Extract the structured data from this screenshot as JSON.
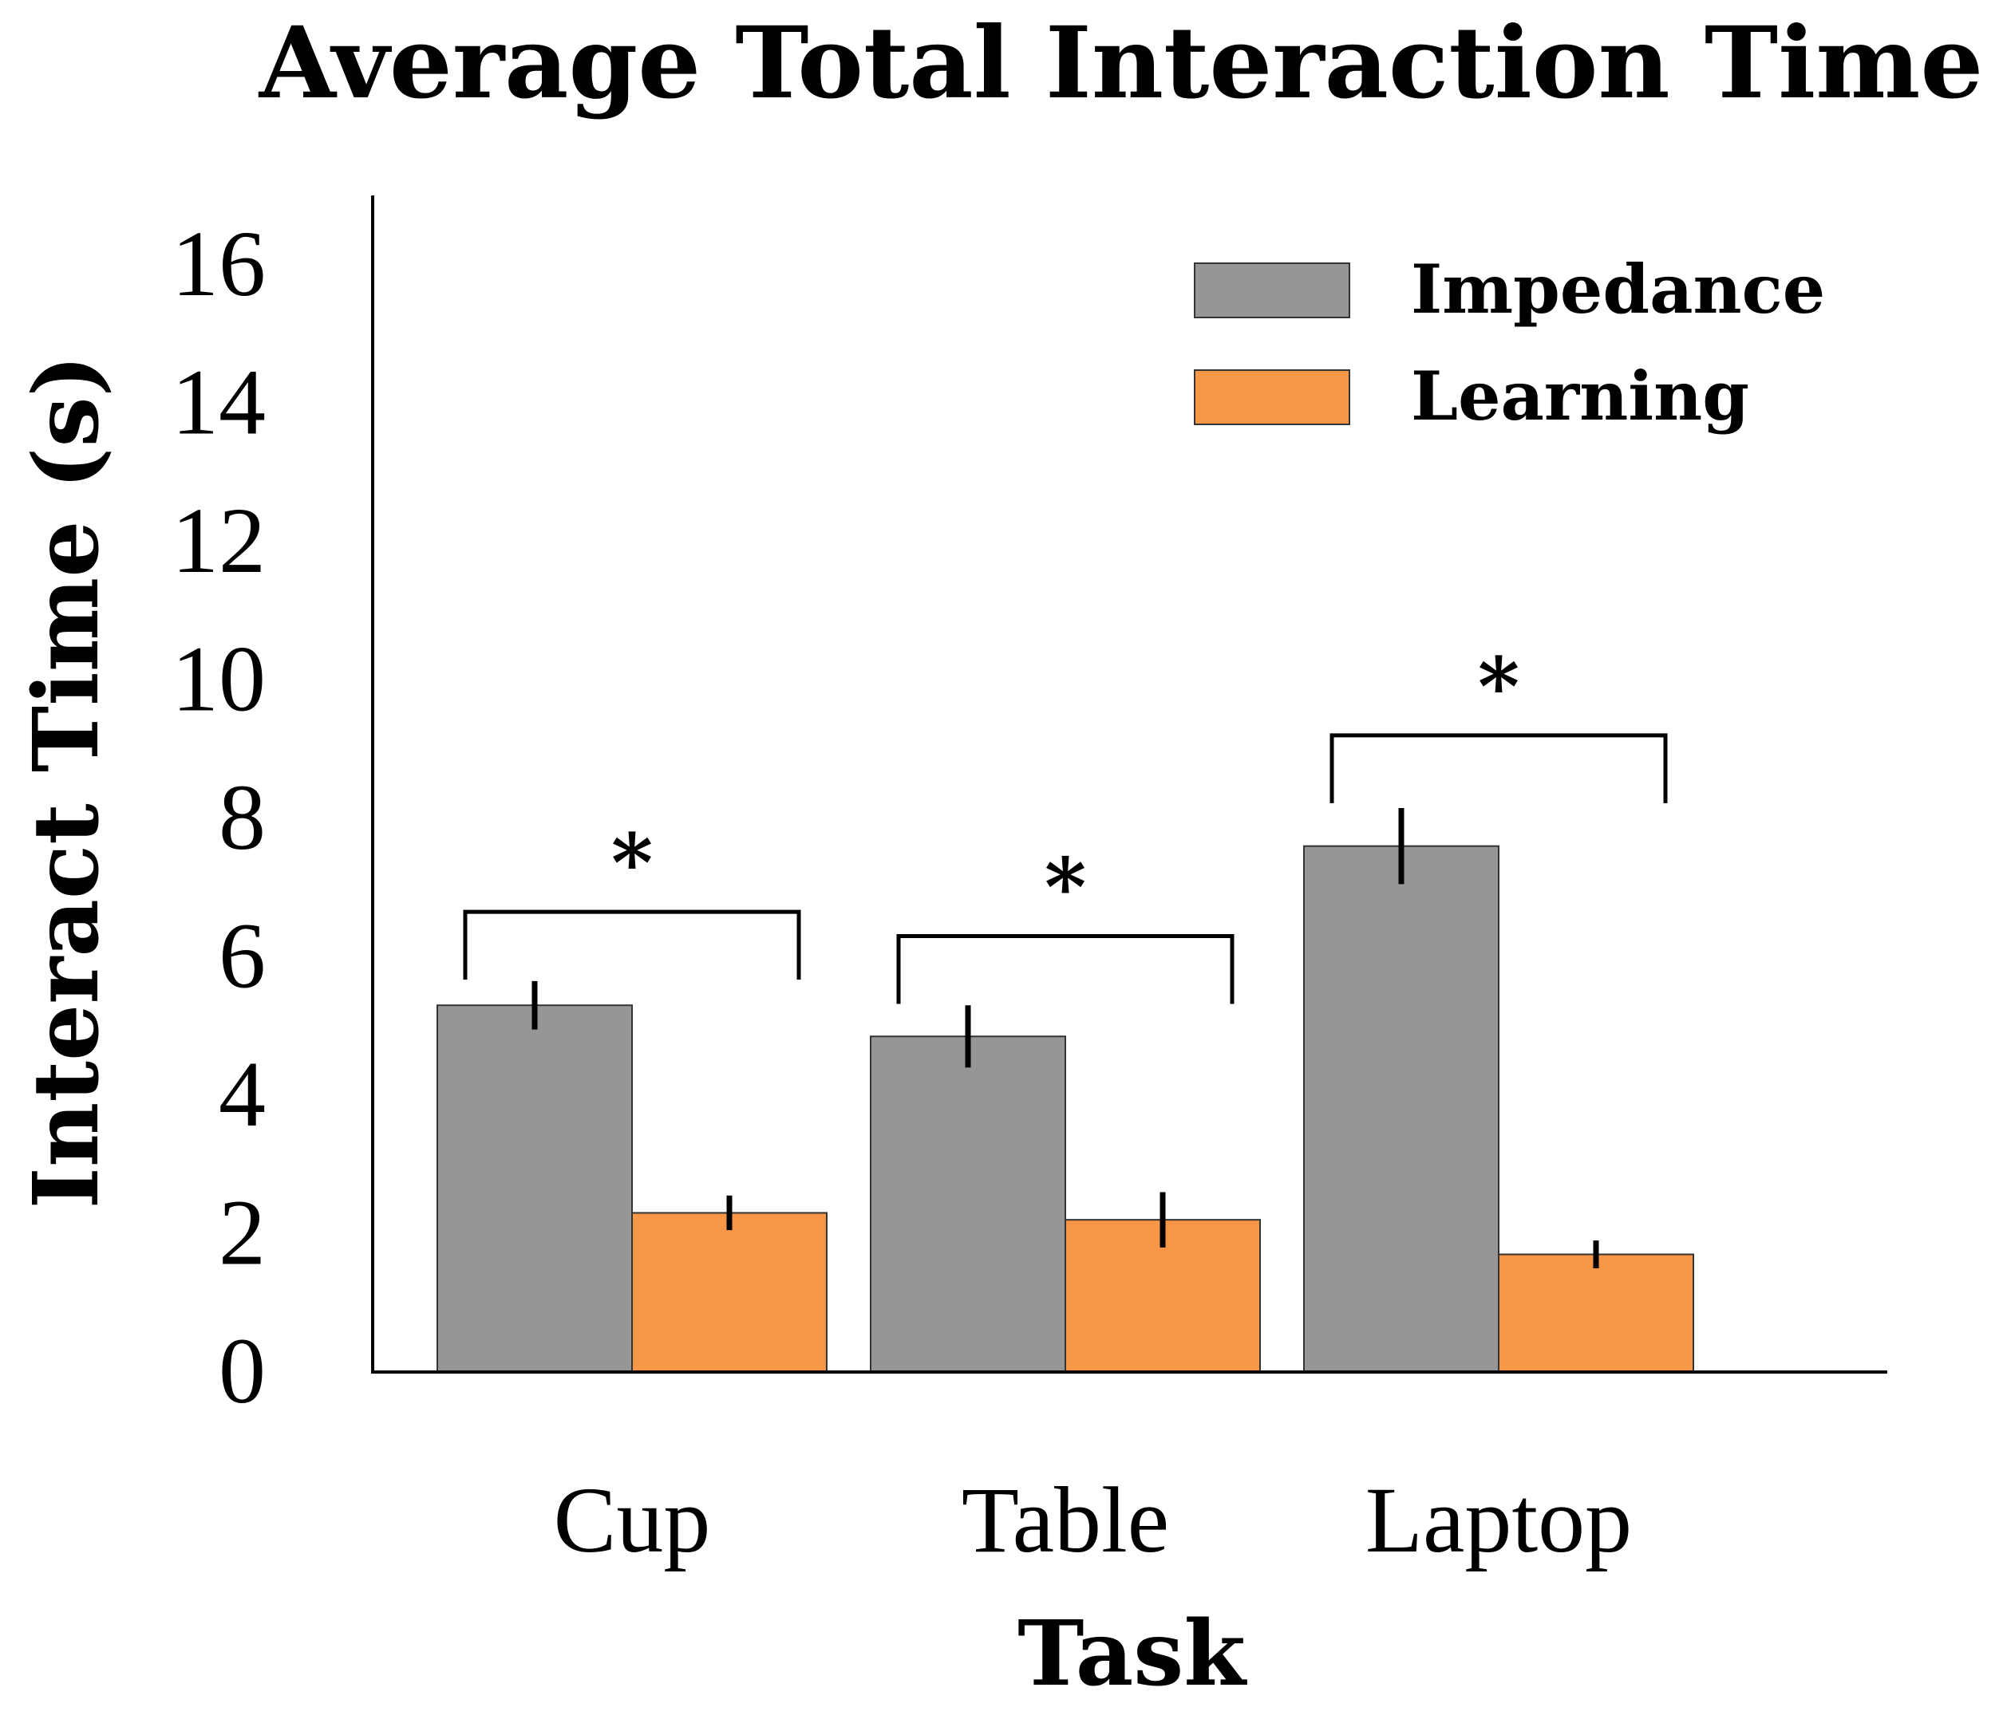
{
  "chart_data": {
    "type": "bar",
    "title": "Average Total Interaction Time",
    "xlabel": "Task",
    "ylabel": "Interact Time (s)",
    "categories": [
      "Cup",
      "Table",
      "Laptop"
    ],
    "series": [
      {
        "name": "Impedance",
        "color": "#969696",
        "values": [
          5.3,
          4.85,
          7.6
        ],
        "errors": [
          0.35,
          0.45,
          0.55
        ]
      },
      {
        "name": "Learning",
        "color": "#f79646",
        "values": [
          2.3,
          2.2,
          1.7
        ],
        "errors": [
          0.25,
          0.4,
          0.2
        ]
      }
    ],
    "ylim": [
      0,
      16.8
    ],
    "yticks": [
      0,
      2,
      4,
      6,
      8,
      10,
      12,
      14,
      16
    ],
    "grid": false,
    "legend": "top-right",
    "significance": [
      {
        "category": "Cup",
        "bracket_y": 6.65,
        "label": "*"
      },
      {
        "category": "Table",
        "bracket_y": 6.3,
        "label": "*"
      },
      {
        "category": "Laptop",
        "bracket_y": 9.2,
        "label": "*"
      }
    ]
  }
}
